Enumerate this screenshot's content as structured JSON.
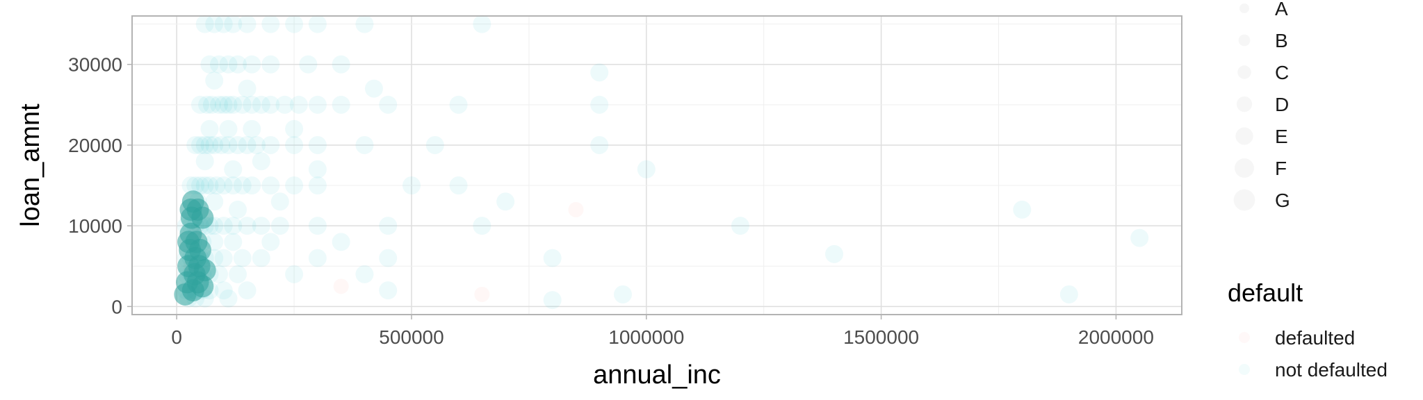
{
  "chart_data": {
    "type": "scatter",
    "xlabel": "annual_inc",
    "ylabel": "loan_amnt",
    "xlim": [
      -95000,
      2140000
    ],
    "ylim": [
      -1000,
      36000
    ],
    "x_ticks": [
      0,
      500000,
      1000000,
      1500000,
      2000000
    ],
    "x_tick_labels": [
      "0",
      "500000",
      "1000000",
      "1500000",
      "2000000"
    ],
    "y_ticks": [
      0,
      10000,
      20000,
      30000
    ],
    "y_tick_labels": [
      "0",
      "10000",
      "20000",
      "30000"
    ],
    "grid": true,
    "series": [
      {
        "name": "defaulted",
        "color": "#F8766D"
      },
      {
        "name": "not defaulted",
        "color": "#00BFC4"
      }
    ],
    "legends": {
      "size": {
        "title": "",
        "items": [
          "A",
          "B",
          "C",
          "D",
          "E",
          "F",
          "G"
        ]
      },
      "color": {
        "title": "default",
        "items": [
          "defaulted",
          "not defaulted"
        ]
      }
    },
    "legend_position": "right",
    "points": [
      [
        60000,
        35000
      ],
      [
        80000,
        35000
      ],
      [
        100000,
        35000
      ],
      [
        120000,
        35000
      ],
      [
        150000,
        35000
      ],
      [
        200000,
        35000
      ],
      [
        250000,
        35000
      ],
      [
        300000,
        35000
      ],
      [
        400000,
        35000
      ],
      [
        650000,
        35000
      ],
      [
        70000,
        30000
      ],
      [
        90000,
        30000
      ],
      [
        110000,
        30000
      ],
      [
        130000,
        30000
      ],
      [
        160000,
        30000
      ],
      [
        200000,
        30000
      ],
      [
        280000,
        30000
      ],
      [
        350000,
        30000
      ],
      [
        80000,
        28000
      ],
      [
        150000,
        27000
      ],
      [
        420000,
        27000
      ],
      [
        900000,
        29000
      ],
      [
        50000,
        25000
      ],
      [
        65000,
        25000
      ],
      [
        75000,
        25000
      ],
      [
        90000,
        25000
      ],
      [
        100000,
        25000
      ],
      [
        110000,
        25000
      ],
      [
        120000,
        25000
      ],
      [
        140000,
        25000
      ],
      [
        160000,
        25000
      ],
      [
        180000,
        25000
      ],
      [
        200000,
        25000
      ],
      [
        230000,
        25000
      ],
      [
        260000,
        25000
      ],
      [
        300000,
        25000
      ],
      [
        350000,
        25000
      ],
      [
        450000,
        25000
      ],
      [
        600000,
        25000
      ],
      [
        900000,
        25000
      ],
      [
        70000,
        22000
      ],
      [
        110000,
        22000
      ],
      [
        160000,
        22000
      ],
      [
        250000,
        22000
      ],
      [
        40000,
        20000
      ],
      [
        50000,
        20000
      ],
      [
        60000,
        20000
      ],
      [
        70000,
        20000
      ],
      [
        80000,
        20000
      ],
      [
        95000,
        20000
      ],
      [
        110000,
        20000
      ],
      [
        130000,
        20000
      ],
      [
        150000,
        20000
      ],
      [
        170000,
        20000
      ],
      [
        200000,
        20000
      ],
      [
        250000,
        20000
      ],
      [
        300000,
        20000
      ],
      [
        400000,
        20000
      ],
      [
        550000,
        20000
      ],
      [
        900000,
        20000
      ],
      [
        60000,
        18000
      ],
      [
        120000,
        17000
      ],
      [
        180000,
        18000
      ],
      [
        300000,
        17000
      ],
      [
        1000000,
        17000
      ],
      [
        30000,
        15000
      ],
      [
        40000,
        15000
      ],
      [
        50000,
        15000
      ],
      [
        60000,
        15000
      ],
      [
        70000,
        15000
      ],
      [
        85000,
        15000
      ],
      [
        100000,
        15000
      ],
      [
        120000,
        15000
      ],
      [
        140000,
        15000
      ],
      [
        160000,
        15000
      ],
      [
        200000,
        15000
      ],
      [
        250000,
        15000
      ],
      [
        300000,
        15000
      ],
      [
        500000,
        15000
      ],
      [
        600000,
        15000
      ],
      [
        45000,
        13000
      ],
      [
        80000,
        13000
      ],
      [
        130000,
        12000
      ],
      [
        220000,
        13000
      ],
      [
        700000,
        13000
      ],
      [
        20000,
        10000
      ],
      [
        30000,
        10000
      ],
      [
        40000,
        10000
      ],
      [
        50000,
        10000
      ],
      [
        60000,
        10000
      ],
      [
        70000,
        10000
      ],
      [
        80000,
        10000
      ],
      [
        100000,
        10000
      ],
      [
        120000,
        10000
      ],
      [
        150000,
        10000
      ],
      [
        180000,
        10000
      ],
      [
        220000,
        10000
      ],
      [
        300000,
        10000
      ],
      [
        450000,
        10000
      ],
      [
        650000,
        10000
      ],
      [
        1200000,
        10000
      ],
      [
        1800000,
        12000
      ],
      [
        35000,
        8000
      ],
      [
        55000,
        8000
      ],
      [
        80000,
        8000
      ],
      [
        120000,
        8000
      ],
      [
        200000,
        8000
      ],
      [
        350000,
        8000
      ],
      [
        2050000,
        8500
      ],
      [
        20000,
        6000
      ],
      [
        30000,
        6000
      ],
      [
        40000,
        6000
      ],
      [
        50000,
        6000
      ],
      [
        60000,
        6000
      ],
      [
        80000,
        6000
      ],
      [
        100000,
        6000
      ],
      [
        140000,
        6000
      ],
      [
        180000,
        6000
      ],
      [
        300000,
        6000
      ],
      [
        450000,
        6000
      ],
      [
        800000,
        6000
      ],
      [
        1400000,
        6500
      ],
      [
        20000,
        4000
      ],
      [
        30000,
        4000
      ],
      [
        40000,
        4000
      ],
      [
        55000,
        4000
      ],
      [
        70000,
        4000
      ],
      [
        90000,
        4000
      ],
      [
        130000,
        4000
      ],
      [
        250000,
        4000
      ],
      [
        400000,
        4000
      ],
      [
        20000,
        2000
      ],
      [
        30000,
        2000
      ],
      [
        40000,
        2000
      ],
      [
        55000,
        2000
      ],
      [
        70000,
        2000
      ],
      [
        100000,
        2000
      ],
      [
        150000,
        2000
      ],
      [
        450000,
        2000
      ],
      [
        950000,
        1500
      ],
      [
        1900000,
        1500
      ],
      [
        25000,
        1000
      ],
      [
        40000,
        1000
      ],
      [
        60000,
        1000
      ],
      [
        110000,
        1000
      ],
      [
        800000,
        800
      ]
    ],
    "points_defaulted": [
      [
        40000,
        9000
      ],
      [
        30000,
        5000
      ],
      [
        350000,
        2500
      ],
      [
        850000,
        12000
      ],
      [
        650000,
        1500
      ]
    ],
    "dense_points": [
      [
        18000,
        1500
      ],
      [
        22000,
        3000
      ],
      [
        25000,
        5000
      ],
      [
        28000,
        7000
      ],
      [
        30000,
        9000
      ],
      [
        32000,
        11000
      ],
      [
        35000,
        2000
      ],
      [
        38000,
        4000
      ],
      [
        40000,
        6000
      ],
      [
        42000,
        8000
      ],
      [
        45000,
        3000
      ],
      [
        48000,
        5000
      ],
      [
        50000,
        7000
      ],
      [
        55000,
        2500
      ],
      [
        60000,
        4500
      ],
      [
        35000,
        13000
      ],
      [
        45000,
        12000
      ],
      [
        55000,
        11000
      ],
      [
        25000,
        8000
      ],
      [
        30000,
        12000
      ]
    ]
  }
}
